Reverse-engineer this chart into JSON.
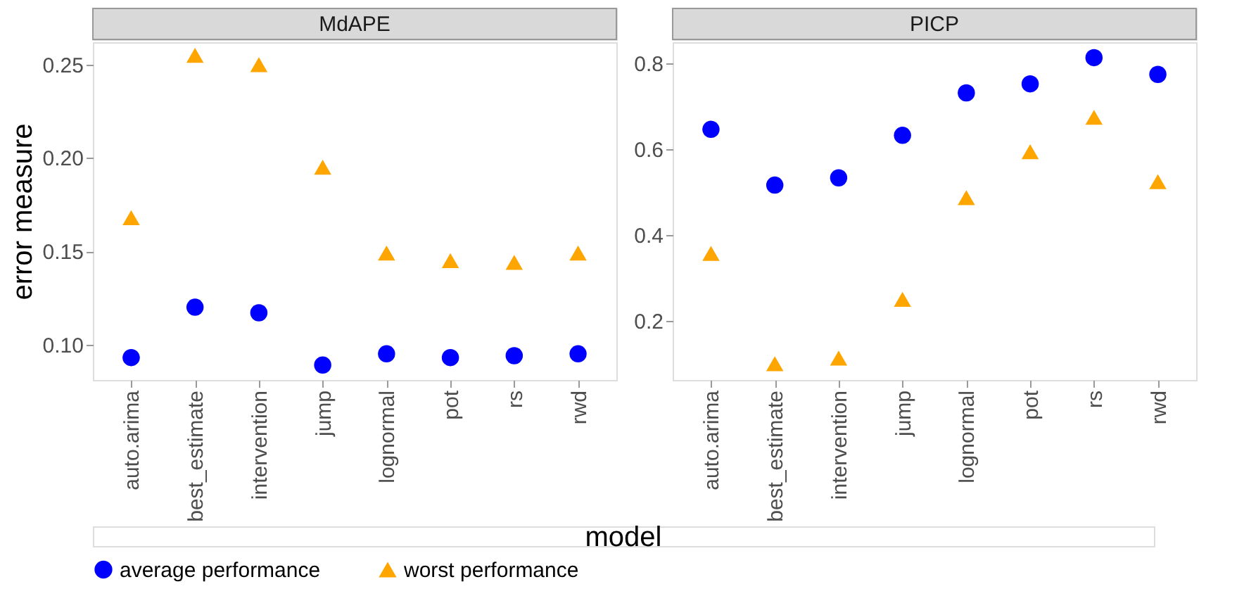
{
  "chart_data": [
    {
      "type": "scatter",
      "title": "MdAPE",
      "ylabel": "error measure",
      "xlabel": "model",
      "categories": [
        "auto.arima",
        "best_estimate",
        "intervention",
        "jump",
        "lognormal",
        "pot",
        "rs",
        "rwd"
      ],
      "series": [
        {
          "name": "average performance",
          "color": "#0000ff",
          "marker": "circle",
          "values": [
            0.093,
            0.12,
            0.117,
            0.089,
            0.095,
            0.093,
            0.094,
            0.095
          ]
        },
        {
          "name": "worst performance",
          "color": "#ffa500",
          "marker": "triangle",
          "values": [
            0.168,
            0.255,
            0.25,
            0.195,
            0.149,
            0.145,
            0.144,
            0.149
          ]
        }
      ],
      "ylim": [
        0.081,
        0.262
      ],
      "yticks": [
        {
          "value": 0.1,
          "label": "0.10"
        },
        {
          "value": 0.15,
          "label": "0.15"
        },
        {
          "value": 0.2,
          "label": "0.20"
        },
        {
          "value": 0.25,
          "label": "0.25"
        }
      ],
      "grid": false,
      "legend": "bottom"
    },
    {
      "type": "scatter",
      "title": "PICP",
      "categories": [
        "auto.arima",
        "best_estimate",
        "intervention",
        "jump",
        "lognormal",
        "pot",
        "rs",
        "rwd"
      ],
      "series": [
        {
          "color": "#0000ff",
          "marker": "circle",
          "values": [
            0.646,
            0.516,
            0.533,
            0.632,
            0.731,
            0.752,
            0.813,
            0.774
          ]
        },
        {
          "color": "#ffa500",
          "marker": "triangle",
          "values": [
            0.357,
            0.1,
            0.113,
            0.25,
            0.487,
            0.594,
            0.674,
            0.524
          ]
        }
      ],
      "ylim": [
        0.062,
        0.849
      ],
      "yticks": [
        0.2,
        0.4,
        0.6,
        0.8
      ],
      "grid": false
    }
  ]
}
